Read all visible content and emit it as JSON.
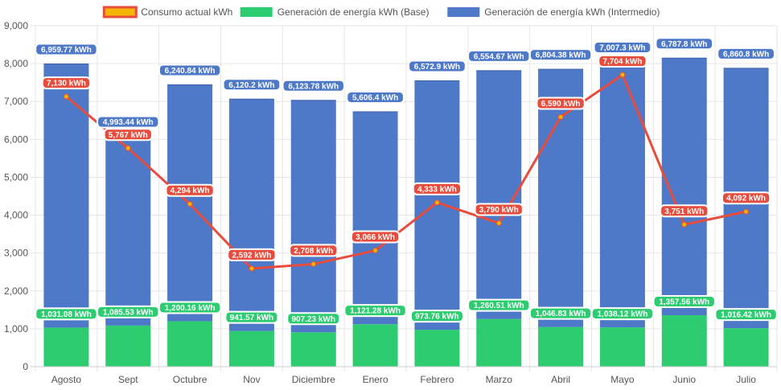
{
  "chart_data": {
    "type": "bar",
    "stacked": true,
    "categories": [
      "Agosto",
      "Sept",
      "Octubre",
      "Nov",
      "Diciembre",
      "Enero",
      "Febrero",
      "Marzo",
      "Abril",
      "Mayo",
      "Junio",
      "Julio"
    ],
    "ylim": [
      0,
      9000
    ],
    "yticks": [
      0,
      1000,
      2000,
      3000,
      4000,
      5000,
      6000,
      7000,
      8000,
      9000
    ],
    "ytick_labels": [
      "0",
      "1,000",
      "2,000",
      "3,000",
      "4,000",
      "5,000",
      "6,000",
      "7,000",
      "8,000",
      "9,000"
    ],
    "legend_position": "top-center",
    "series": [
      {
        "name": "Consumo actual kWh",
        "type": "line",
        "color": "#e74c3c",
        "marker_color": "#f5b400",
        "values": [
          7130,
          5767,
          4294,
          2592,
          2708,
          3066,
          4333,
          3790,
          6590,
          7704,
          3751,
          4092
        ],
        "labels": [
          "7,130 kWh",
          "5,767 kWh",
          "4,294 kWh",
          "2,592 kWh",
          "2,708 kWh",
          "3,066 kWh",
          "4,333 kWh",
          "3,790 kWh",
          "6,590 kWh",
          "7,704 kWh",
          "3,751 kWh",
          "4,092 kWh"
        ]
      },
      {
        "name": "Generación de energía kWh (Base)",
        "type": "bar",
        "color": "#2ecc71",
        "values": [
          1031.08,
          1085.53,
          1200.16,
          941.57,
          907.23,
          1121.28,
          973.76,
          1260.51,
          1046.83,
          1038.12,
          1357.56,
          1016.42
        ],
        "labels": [
          "1,031.08 kWh",
          "1,085.53 kWh",
          "1,200.16 kWh",
          "941.57 kWh",
          "907.23 kWh",
          "1,121.28 kWh",
          "973.76 kWh",
          "1,260.51 kWh",
          "1,046.83 kWh",
          "1,038.12 kWh",
          "1,357.56 kWh",
          "1,016.42 kWh"
        ]
      },
      {
        "name": "Generación de energía kWh (Intermedio)",
        "type": "bar",
        "color": "#4e79c9",
        "values": [
          6959.77,
          4993.44,
          6240.84,
          6120.2,
          6123.78,
          5606.4,
          6572.9,
          6554.67,
          6804.38,
          7007.3,
          6787.8,
          6860.8
        ],
        "labels": [
          "6,959.77 kWh",
          "4,993.44 kWh",
          "6,240.84 kWh",
          "6,120.2 kWh",
          "6,123.78 kWh",
          "5,606.4 kWh",
          "6,572.9 kWh",
          "6,554.67 kWh",
          "6,804.38 kWh",
          "7,007.3 kWh",
          "6,787.8 kWh",
          "6,860.8 kWh"
        ]
      }
    ]
  }
}
